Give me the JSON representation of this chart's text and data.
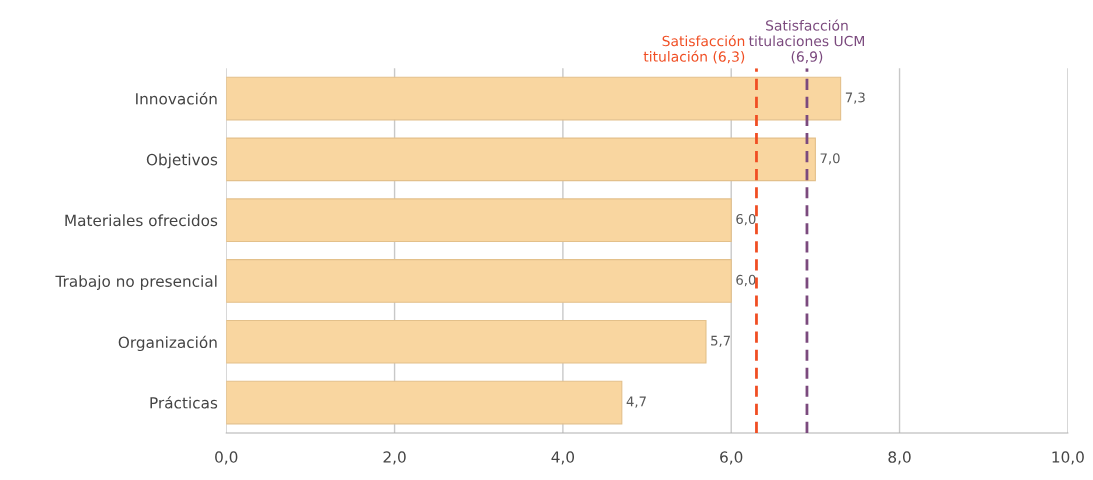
{
  "chart_data": {
    "type": "bar",
    "orientation": "horizontal",
    "categories": [
      "Innovación",
      "Objetivos",
      "Materiales ofrecidos",
      "Trabajo no presencial",
      "Organización",
      "Prácticas"
    ],
    "values": [
      7.3,
      7.0,
      6.0,
      6.0,
      5.7,
      4.7
    ],
    "value_labels": [
      "7,3",
      "7,0",
      "6,0",
      "6,0",
      "5,7",
      "4,7"
    ],
    "color": "#f9d6a0",
    "xlim": [
      0,
      10
    ],
    "xticks": [
      {
        "value": 0,
        "label": "0,0"
      },
      {
        "value": 2,
        "label": "2,0"
      },
      {
        "value": 4,
        "label": "4,0"
      },
      {
        "value": 6,
        "label": "6,0"
      },
      {
        "value": 8,
        "label": "8,0"
      },
      {
        "value": 10,
        "label": "10,0"
      }
    ],
    "grid": "x",
    "ref_lines": [
      {
        "axis": "x",
        "value": 6.3,
        "label": "Satisfacción\ntitulación (6,3)",
        "color": "#f04e23",
        "line_style": "dashed"
      },
      {
        "axis": "x",
        "value": 6.9,
        "label": "Satisfacción\ntitulaciones UCM\n(6,9)",
        "color": "#7b4a7e",
        "line_style": "dashed"
      }
    ]
  }
}
